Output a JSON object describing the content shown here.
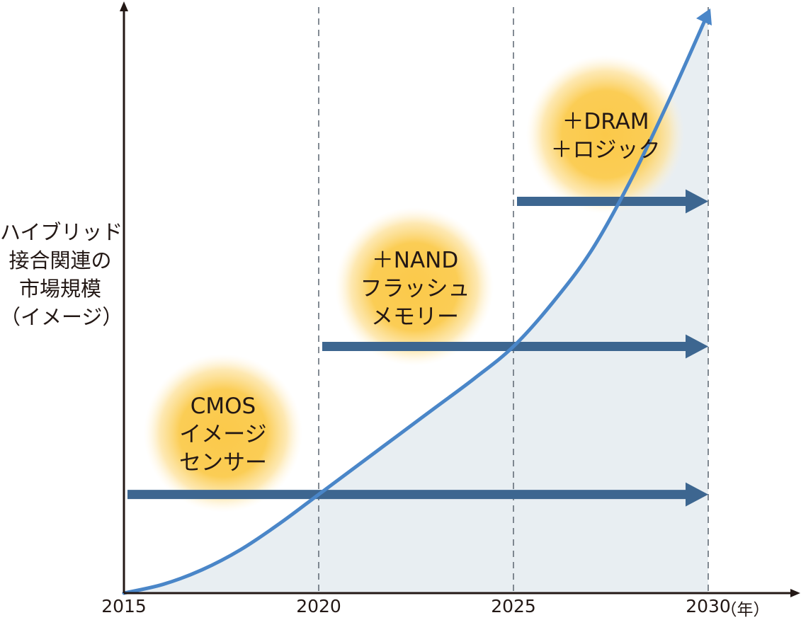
{
  "chart_data": {
    "type": "area",
    "title": "",
    "ylabel_lines": [
      "ハイブリッド",
      "接合関連の",
      "市場規模",
      "（イメージ）"
    ],
    "xlabel": "（年）",
    "x_ticks": [
      "2015",
      "2020",
      "2025",
      "2030"
    ],
    "xlim": [
      2015,
      2030
    ],
    "ylim": [
      0,
      100
    ],
    "grid": "dashed vertical lines at 2020, 2025, 2030",
    "series": [
      {
        "name": "market size (illustrative)",
        "x": [
          2015,
          2016,
          2017,
          2018,
          2019,
          2020,
          2021,
          2022,
          2023,
          2024,
          2025,
          2026,
          2027,
          2028,
          2029,
          2030
        ],
        "values": [
          0,
          1.5,
          4,
          7.5,
          12,
          17,
          22,
          27,
          32,
          37,
          42.5,
          50,
          59,
          71,
          85,
          100
        ]
      }
    ],
    "phases": [
      {
        "label_lines": [
          "CMOS",
          "イメージ",
          "センサー"
        ],
        "start": 2015,
        "end": 2030,
        "level": 17
      },
      {
        "label_lines": [
          "＋NAND",
          "フラッシュ",
          "メモリー"
        ],
        "start": 2020,
        "end": 2030,
        "level": 42.5
      },
      {
        "label_lines": [
          "＋DRAM",
          "＋ロジック"
        ],
        "start": 2025,
        "end": 2030,
        "level": 67.5
      }
    ],
    "colors": {
      "curve": "#4a86c8",
      "fill": "#e8eef2",
      "arrow": "#3d6690",
      "glow": "#f9c840",
      "axis": "#231815",
      "grid": "#5a6570"
    }
  }
}
